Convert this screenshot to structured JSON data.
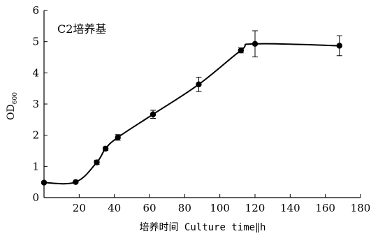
{
  "chart_data": {
    "type": "line",
    "annotation": "C2培养基",
    "xlabel": "培养时间 Culture time∥h",
    "ylabel": {
      "main": "OD",
      "sub": "600"
    },
    "xlim": [
      0,
      180
    ],
    "ylim": [
      0,
      6
    ],
    "xticks": [
      20,
      40,
      60,
      80,
      100,
      120,
      140,
      160,
      180
    ],
    "yticks": [
      0,
      1,
      2,
      3,
      4,
      5,
      6
    ],
    "origin_label": "0",
    "grid": false,
    "series": [
      {
        "x": [
          0,
          18,
          30,
          35,
          42,
          62,
          88,
          112,
          120,
          168
        ],
        "y": [
          0.48,
          0.5,
          1.13,
          1.57,
          1.93,
          2.67,
          3.63,
          4.72,
          4.93,
          4.87
        ],
        "err": [
          0.03,
          0.03,
          0.07,
          0.06,
          0.09,
          0.13,
          0.23,
          0.08,
          0.42,
          0.32
        ]
      }
    ]
  }
}
